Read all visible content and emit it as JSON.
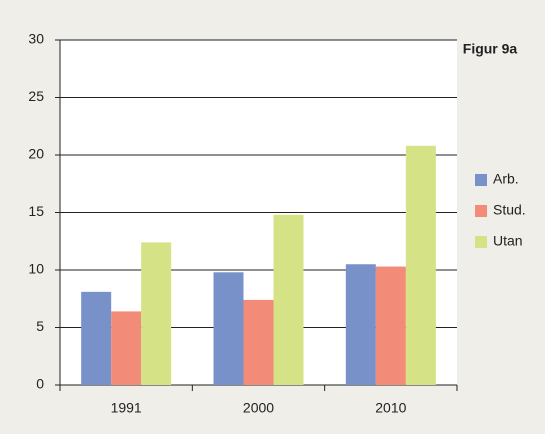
{
  "chart_data": {
    "type": "bar",
    "title": "Figur 9a",
    "categories": [
      "1991",
      "2000",
      "2010"
    ],
    "series": [
      {
        "name": "Arb.",
        "color": "#7891c8",
        "values": [
          8.1,
          9.8,
          10.5
        ]
      },
      {
        "name": "Stud.",
        "color": "#f28b78",
        "values": [
          6.4,
          7.4,
          10.3
        ]
      },
      {
        "name": "Utan",
        "color": "#d5e286",
        "values": [
          12.4,
          14.8,
          20.8
        ]
      }
    ],
    "ylim": [
      0,
      30
    ],
    "yticks": [
      0,
      5,
      10,
      15,
      20,
      25,
      30
    ],
    "grid": true,
    "legend": "right"
  }
}
